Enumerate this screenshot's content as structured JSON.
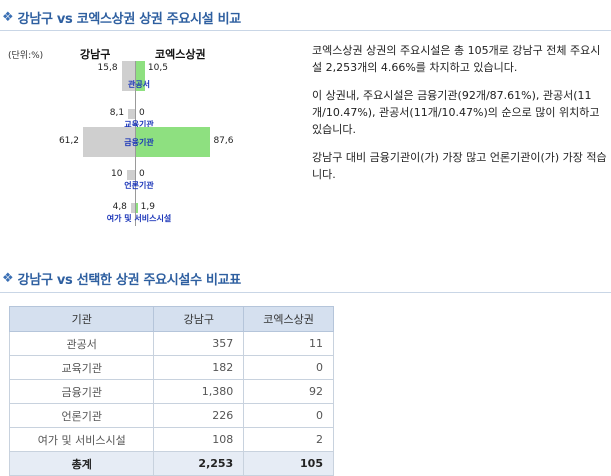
{
  "section1": {
    "title": "강남구 vs 코엑스상권 상권 주요시설 비교"
  },
  "section2": {
    "title": "강남구 vs 선택한 상권 주요시설수 비교표"
  },
  "chart": {
    "unit": "(단위:%)",
    "left_head": "강남구",
    "right_head": "코엑스상권"
  },
  "chart_data": {
    "type": "bar",
    "categories": [
      "관공서",
      "교육기관",
      "금융기관",
      "언론기관",
      "여가 및 서비스시설"
    ],
    "series": [
      {
        "name": "강남구",
        "values": [
          15.8,
          8.1,
          61.2,
          10,
          4.8
        ],
        "labels": [
          "15,8",
          "8,1",
          "61,2",
          "10",
          "4,8"
        ]
      },
      {
        "name": "코엑스상권",
        "values": [
          10.5,
          0,
          87.6,
          0,
          1.9
        ],
        "labels": [
          "10,5",
          "0",
          "87,6",
          "0",
          "1,9"
        ]
      }
    ],
    "colors": {
      "left": "#cfcfcf",
      "right": "#8ee080",
      "category": "#1a35b8"
    }
  },
  "description": {
    "p1": "코엑스상권 상권의 주요시설은 총 105개로 강남구 전체 주요시설 2,253개의 4.66%를 차지하고 있습니다.",
    "p2": "이 상권내, 주요시설은 금융기관(92개/87.61%), 관공서(11개/10.47%), 관공서(11개/10.47%)의 순으로 많이 위치하고 있습니다.",
    "p3": "강남구 대비 금융기관이(가) 가장 많고 언론기관이(가) 가장 적습니다."
  },
  "table": {
    "headers": [
      "기관",
      "강남구",
      "코엑스상권"
    ],
    "rows": [
      [
        "관공서",
        "357",
        "11"
      ],
      [
        "교육기관",
        "182",
        "0"
      ],
      [
        "금융기관",
        "1,380",
        "92"
      ],
      [
        "언론기관",
        "226",
        "0"
      ],
      [
        "여가 및 서비스시설",
        "108",
        "2"
      ]
    ],
    "total": [
      "총계",
      "2,253",
      "105"
    ]
  }
}
